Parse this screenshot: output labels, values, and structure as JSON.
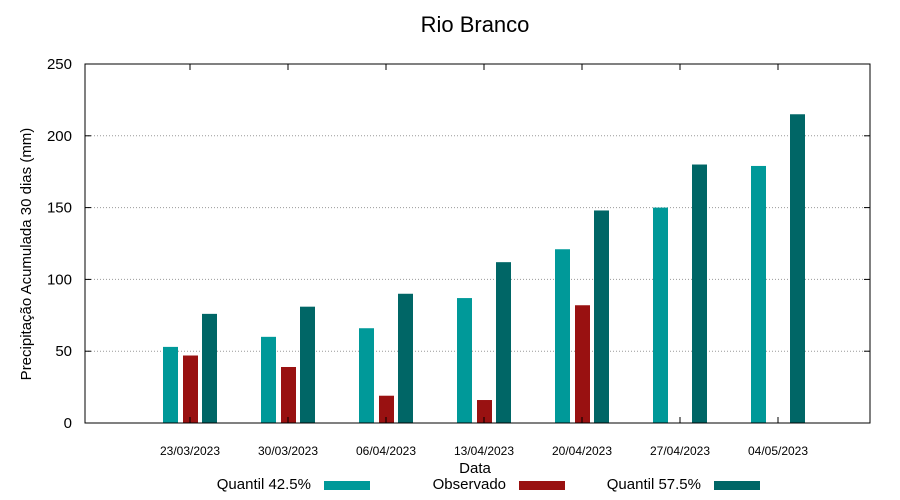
{
  "chart_data": {
    "type": "bar",
    "title": "Rio Branco",
    "xlabel": "Data",
    "ylabel": "Precipitação Acumulada 30 dias (mm)",
    "ylim": [
      0,
      250
    ],
    "yticks": [
      0,
      50,
      100,
      150,
      200,
      250
    ],
    "grid": "horizontal dotted",
    "legend_position": "bottom",
    "categories": [
      "23/03/2023",
      "30/03/2023",
      "06/04/2023",
      "13/04/2023",
      "20/04/2023",
      "27/04/2023",
      "04/05/2023"
    ],
    "series": [
      {
        "name": "Quantil 42.5%",
        "color": "#009999",
        "values": [
          53,
          60,
          66,
          87,
          121,
          150,
          179
        ]
      },
      {
        "name": "Observado",
        "color": "#991111",
        "values": [
          47,
          39,
          19,
          16,
          82,
          null,
          null
        ]
      },
      {
        "name": "Quantil 57.5%",
        "color": "#006666",
        "values": [
          76,
          81,
          90,
          112,
          148,
          180,
          215
        ]
      }
    ]
  }
}
